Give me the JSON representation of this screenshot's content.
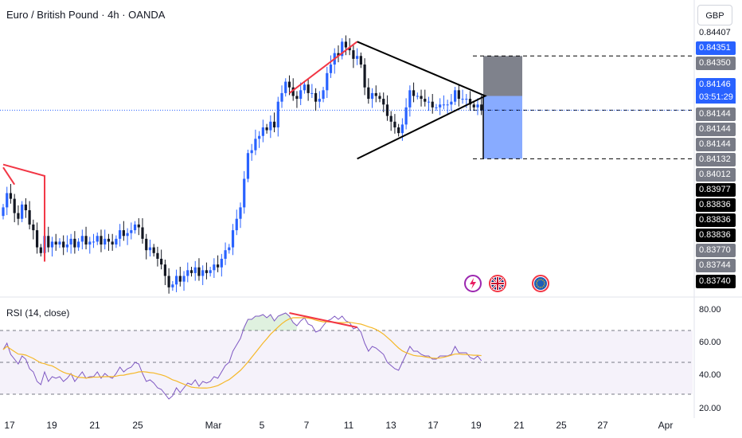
{
  "header": {
    "title": "Euro / British Pound · 4h · OANDA",
    "currency_button": "GBP"
  },
  "colors": {
    "up": "#2962ff",
    "down": "#131722",
    "rsi_line": "#7e57c2",
    "rsi_ma": "#f5b829",
    "annotation_red": "#f23645",
    "position_stop": "#787b86",
    "position_target": "#82a6ff"
  },
  "price_labels": [
    {
      "text": "0.84407",
      "style": "plain"
    },
    {
      "text": "0.84351",
      "style": "blue"
    },
    {
      "text": "0.84350",
      "style": "gray"
    },
    {
      "text": "0.84146",
      "style": "blue"
    },
    {
      "text": "0.84144",
      "style": "gray"
    },
    {
      "text": "0.84144",
      "style": "gray"
    },
    {
      "text": "0.84144",
      "style": "gray"
    },
    {
      "text": "0.84132",
      "style": "gray"
    },
    {
      "text": "0.84012",
      "style": "gray"
    },
    {
      "text": "0.83977",
      "style": "black"
    },
    {
      "text": "0.83836",
      "style": "black"
    },
    {
      "text": "0.83836",
      "style": "black"
    },
    {
      "text": "0.83836",
      "style": "black"
    },
    {
      "text": "0.83770",
      "style": "gray"
    },
    {
      "text": "0.83744",
      "style": "gray"
    },
    {
      "text": "0.83740",
      "style": "black"
    }
  ],
  "countdown": "03:51:29",
  "rsi": {
    "label": "RSI (14, close)",
    "ticks": [
      "80.00",
      "60.00",
      "40.00",
      "20.00"
    ]
  },
  "x_axis": {
    "ticks": [
      "17",
      "19",
      "21",
      "25",
      "Mar",
      "5",
      "7",
      "11",
      "13",
      "17",
      "19",
      "21",
      "25",
      "27",
      "Apr"
    ]
  },
  "events": [
    {
      "icon": "lightning-icon"
    },
    {
      "icon": "uk-flag-icon"
    },
    {
      "icon": "eu-flag-icon"
    }
  ],
  "chart_data": {
    "type": "candlestick",
    "symbol": "Euro / British Pound",
    "interval": "4h",
    "closes": [
      0.838,
      0.8385,
      0.8383,
      0.8378,
      0.8376,
      0.8381,
      0.8379,
      0.8374,
      0.8372,
      0.8366,
      0.8364,
      0.837,
      0.8366,
      0.8368,
      0.8367,
      0.8368,
      0.8366,
      0.8367,
      0.8369,
      0.8366,
      0.8368,
      0.837,
      0.8367,
      0.8368,
      0.8368,
      0.837,
      0.8367,
      0.8369,
      0.8368,
      0.8367,
      0.8369,
      0.8372,
      0.837,
      0.8371,
      0.8372,
      0.8374,
      0.8373,
      0.8369,
      0.8365,
      0.8366,
      0.8364,
      0.8362,
      0.836,
      0.8356,
      0.8352,
      0.8353,
      0.8356,
      0.8354,
      0.8356,
      0.8358,
      0.8357,
      0.8359,
      0.8356,
      0.8358,
      0.8357,
      0.8358,
      0.836,
      0.8359,
      0.8362,
      0.8365,
      0.8366,
      0.8372,
      0.8376,
      0.838,
      0.839,
      0.8399,
      0.84,
      0.8404,
      0.8405,
      0.8408,
      0.8407,
      0.841,
      0.8408,
      0.8417,
      0.842,
      0.8424,
      0.8422,
      0.8419,
      0.8418,
      0.8421,
      0.8423,
      0.842,
      0.842,
      0.8417,
      0.8418,
      0.8421,
      0.8427,
      0.843,
      0.8434,
      0.8433,
      0.8438,
      0.8436,
      0.8435,
      0.8432,
      0.8433,
      0.843,
      0.8422,
      0.8418,
      0.842,
      0.8419,
      0.8418,
      0.8416,
      0.8412,
      0.841,
      0.8408,
      0.8406,
      0.8409,
      0.8415,
      0.8421,
      0.8419,
      0.8419,
      0.8418,
      0.8417,
      0.8417,
      0.8415,
      0.8415,
      0.8416,
      0.8416,
      0.8416,
      0.8417,
      0.8421,
      0.8418,
      0.8418,
      0.8418,
      0.8416,
      0.8415,
      0.8416,
      0.8414
    ],
    "rsi_values": [
      58,
      62,
      55,
      52,
      49,
      54,
      52,
      46,
      44,
      38,
      36,
      44,
      38,
      41,
      40,
      41,
      38,
      40,
      43,
      38,
      41,
      44,
      40,
      41,
      41,
      44,
      40,
      43,
      41,
      40,
      43,
      47,
      44,
      46,
      47,
      50,
      49,
      43,
      38,
      39,
      37,
      34,
      33,
      30,
      27,
      29,
      34,
      31,
      34,
      37,
      36,
      39,
      35,
      38,
      37,
      38,
      41,
      40,
      44,
      48,
      50,
      57,
      61,
      65,
      72,
      77,
      77,
      79,
      79,
      80,
      78,
      80,
      76,
      79,
      80,
      81,
      79,
      75,
      73,
      76,
      78,
      74,
      73,
      69,
      70,
      73,
      76,
      77,
      79,
      77,
      79,
      76,
      75,
      71,
      72,
      69,
      62,
      57,
      60,
      59,
      57,
      55,
      50,
      48,
      46,
      45,
      50,
      55,
      60,
      57,
      57,
      55,
      54,
      54,
      52,
      52,
      54,
      54,
      54,
      55,
      60,
      56,
      56,
      56,
      53,
      52,
      54,
      51
    ],
    "rsi_levels": [
      70,
      50,
      30
    ],
    "y_range_rsi": [
      15,
      90
    ],
    "y_axis_prices": [
      "0.84407",
      "0.84351",
      "0.84350",
      "0.84146",
      "0.84144",
      "0.84132",
      "0.84012",
      "0.83977",
      "0.83836",
      "0.83770",
      "0.83744",
      "0.83740"
    ],
    "position": {
      "type": "short",
      "entry": 0.8419,
      "stop": 0.8433,
      "target": 0.8397
    },
    "annotations": [
      {
        "type": "triangle",
        "color": "#000000"
      },
      {
        "type": "trend-line",
        "color": "#f23645"
      },
      {
        "type": "rsi-divergence-line",
        "color": "#f23645"
      }
    ]
  }
}
